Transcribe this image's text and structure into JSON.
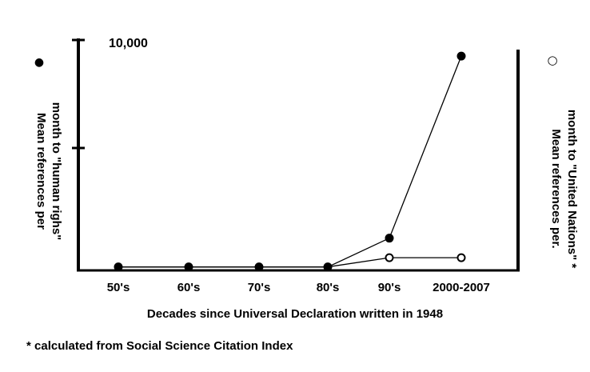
{
  "chart_data": {
    "type": "line",
    "categories": [
      "50's",
      "60's",
      "70's",
      "80's",
      "90's",
      "2000-2007"
    ],
    "series": [
      {
        "values": [
          150,
          150,
          150,
          150,
          1400,
          9300
        ],
        "marker": "filled-circle",
        "axis": "left"
      },
      {
        "values": [
          150,
          150,
          150,
          150,
          550,
          550
        ],
        "marker": "open-circle",
        "axis": "right"
      }
    ],
    "ylim": [
      0,
      10000
    ],
    "y_tick_label": "10,000",
    "xlabel": "Decades since Universal Declaration written in 1948",
    "ylabel_left": "Mean references per month to \"human righs\"",
    "ylabel_right": "Mean references per. month to \"United Nations\" *",
    "legend_left_marker": "●",
    "legend_right_marker": "○",
    "footnote": "* calculated from Social Science Citation Index",
    "grid": false,
    "line_color": "#000000"
  }
}
